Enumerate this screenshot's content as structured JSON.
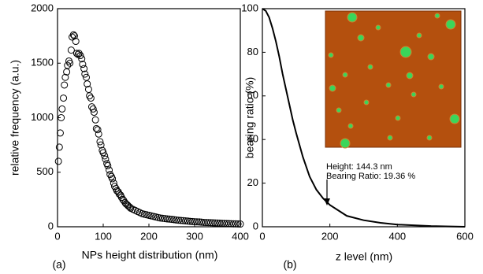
{
  "chart_data": [
    {
      "type": "scatter",
      "label": "(a)",
      "xlabel": "NPs height distribution (nm)",
      "ylabel": "relative frequency (a.u.)",
      "xlim": [
        0,
        400
      ],
      "ylim": [
        0,
        2000
      ],
      "xticks": [
        0,
        100,
        200,
        300,
        400
      ],
      "yticks": [
        0,
        500,
        1000,
        1500,
        2000
      ],
      "color": "#000000",
      "x": [
        2,
        4,
        6,
        8,
        10,
        13,
        15,
        17,
        20,
        22,
        25,
        27,
        30,
        32,
        35,
        37,
        40,
        42,
        45,
        47,
        50,
        53,
        55,
        58,
        60,
        63,
        65,
        68,
        70,
        73,
        75,
        78,
        80,
        83,
        85,
        88,
        90,
        93,
        95,
        98,
        100,
        103,
        105,
        108,
        110,
        113,
        115,
        118,
        120,
        123,
        125,
        128,
        130,
        133,
        135,
        138,
        140,
        143,
        145,
        148,
        150,
        153,
        155,
        158,
        160,
        165,
        170,
        175,
        180,
        185,
        190,
        195,
        200,
        205,
        210,
        215,
        220,
        225,
        230,
        235,
        240,
        245,
        250,
        255,
        260,
        265,
        270,
        275,
        280,
        285,
        290,
        295,
        300,
        305,
        310,
        315,
        320,
        325,
        330,
        335,
        340,
        345,
        350,
        355,
        360,
        365,
        370,
        375,
        380,
        385,
        390,
        395,
        400
      ],
      "y": [
        600,
        730,
        860,
        1000,
        1080,
        1180,
        1300,
        1370,
        1420,
        1480,
        1520,
        1500,
        1620,
        1740,
        1760,
        1750,
        1700,
        1590,
        1580,
        1590,
        1570,
        1540,
        1490,
        1450,
        1400,
        1370,
        1310,
        1260,
        1200,
        1180,
        1100,
        1080,
        1050,
        980,
        900,
        890,
        850,
        780,
        750,
        700,
        680,
        650,
        620,
        580,
        560,
        520,
        480,
        460,
        440,
        400,
        370,
        350,
        330,
        320,
        300,
        290,
        270,
        250,
        240,
        220,
        210,
        200,
        190,
        180,
        170,
        160,
        150,
        140,
        130,
        120,
        115,
        110,
        105,
        100,
        95,
        90,
        85,
        80,
        78,
        75,
        72,
        70,
        68,
        65,
        62,
        60,
        58,
        56,
        54,
        52,
        50,
        48,
        46,
        45,
        44,
        42,
        40,
        39,
        38,
        37,
        36,
        35,
        34,
        33,
        32,
        31,
        30,
        29,
        28,
        27,
        27,
        26,
        25
      ]
    },
    {
      "type": "line",
      "label": "(b)",
      "xlabel": "z level (nm)",
      "ylabel": "bearing ratio (%)",
      "xlim": [
        0,
        600
      ],
      "ylim": [
        0,
        100
      ],
      "xticks": [
        0,
        200,
        400,
        600
      ],
      "yticks": [
        0,
        20,
        40,
        60,
        80,
        100
      ],
      "color": "#000000",
      "annotation": [
        "Height: 144.3 nm",
        "Bearing Ratio: 19.36 %"
      ],
      "x": [
        0,
        10,
        20,
        30,
        40,
        50,
        60,
        70,
        80,
        90,
        100,
        120,
        140,
        160,
        180,
        200,
        250,
        300,
        350,
        400,
        500,
        600
      ],
      "y": [
        100,
        99,
        96,
        91,
        85,
        78,
        70,
        63,
        56,
        49,
        43,
        32,
        23,
        17,
        13,
        10,
        5,
        3,
        1.8,
        1,
        0.3,
        0
      ]
    }
  ]
}
